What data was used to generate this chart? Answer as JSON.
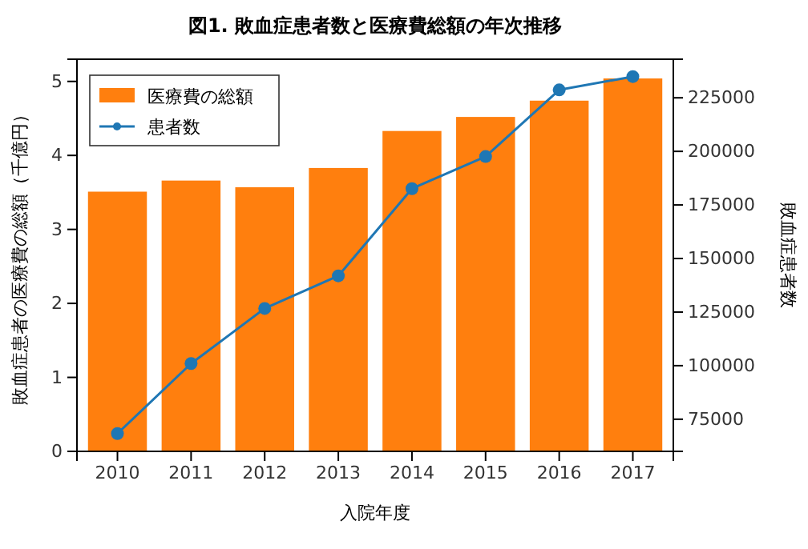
{
  "chart_data": {
    "type": "bar",
    "title": "図1. 敗血症患者数と医療費総額の年次推移",
    "xlabel": "入院年度",
    "ylabel": "敗血症患者の医療費の総額（千億円）",
    "y2label": "敗血症患者数",
    "categories": [
      "2010",
      "2011",
      "2012",
      "2013",
      "2014",
      "2015",
      "2016",
      "2017"
    ],
    "series": [
      {
        "name": "医療費の総額",
        "color": "#ff7f0e",
        "values": [
          3.51,
          3.66,
          3.57,
          3.83,
          4.33,
          4.52,
          4.74,
          5.04
        ]
      },
      {
        "name": "患者数",
        "type": "line",
        "axis": "y2",
        "color": "#1f77b4",
        "marker": "circle",
        "values": [
          68300,
          101000,
          126700,
          141900,
          182600,
          197600,
          228700,
          234900
        ]
      }
    ],
    "ylim": [
      0,
      5.3
    ],
    "yticks": [
      0,
      1,
      2,
      3,
      4,
      5
    ],
    "y2lim": [
      60000,
      243000
    ],
    "y2ticks": [
      75000,
      100000,
      125000,
      150000,
      175000,
      200000,
      225000
    ],
    "legend": "top left",
    "grid": false
  }
}
